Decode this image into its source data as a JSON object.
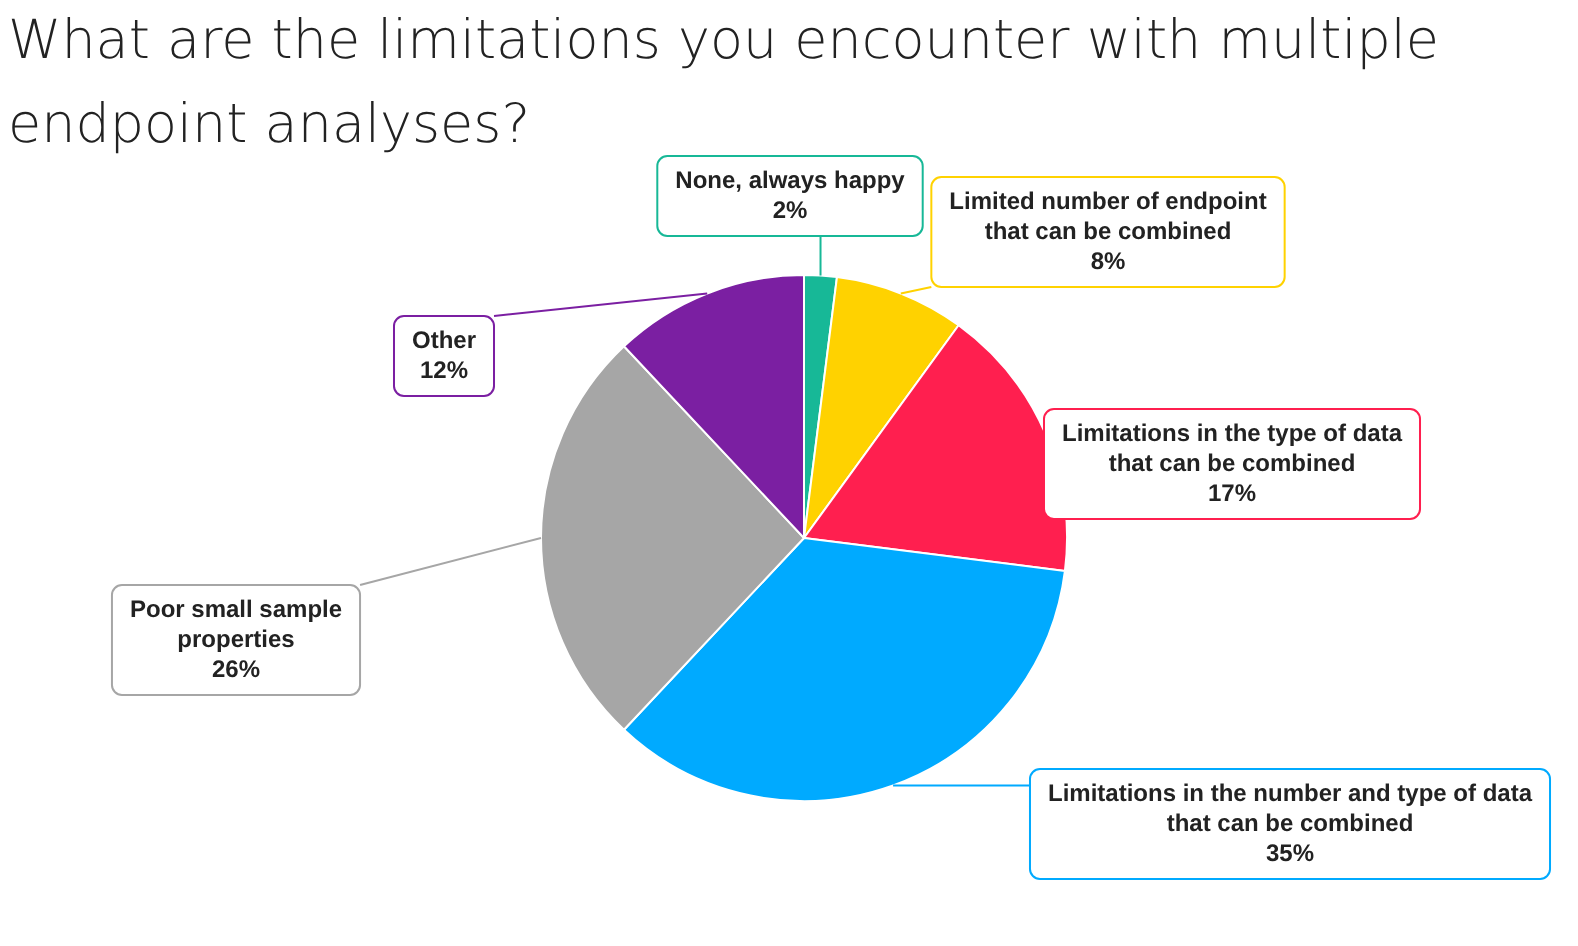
{
  "chart_data": {
    "type": "pie",
    "title": "What are the limitations you encounter with multiple endpoint analyses?",
    "categories": [
      "None, always happy",
      "Limited number of endpoint that can be combined",
      "Limitations in the type of data that can be combined",
      "Limitations in the number and type of data that can be combined",
      "Poor small sample properties",
      "Other"
    ],
    "values": [
      2,
      8,
      17,
      35,
      26,
      12
    ],
    "value_labels": [
      "2%",
      "8%",
      "17%",
      "35%",
      "26%",
      "12%"
    ],
    "colors": [
      "#17b897",
      "#ffd200",
      "#ff1f4f",
      "#00aaff",
      "#a6a6a6",
      "#7b1fa2"
    ],
    "legend": false
  }
}
